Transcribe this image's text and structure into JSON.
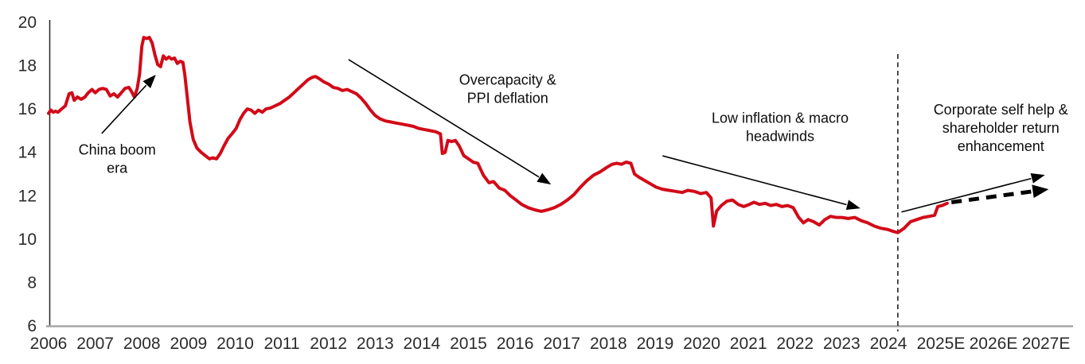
{
  "chart_data": {
    "type": "line",
    "title": "",
    "xlabel": "",
    "ylabel": "",
    "ylim": [
      6,
      20
    ],
    "yticks": [
      6,
      8,
      10,
      12,
      14,
      16,
      18,
      20
    ],
    "x_axis_labels": [
      "2006",
      "2007",
      "2008",
      "2009",
      "2010",
      "2011",
      "2012",
      "2013",
      "2014",
      "2015",
      "2016",
      "2017",
      "2018",
      "2019",
      "2020",
      "2021",
      "2022",
      "2023",
      "2024",
      "2025E",
      "2026E",
      "2027E"
    ],
    "grid": false,
    "legend": false,
    "colors": {
      "line": "#d20a18",
      "forecast": "#111111",
      "axis": "#262626",
      "x_axis_line": "#a6a6a6",
      "annotation_text": "#0d0d0d"
    },
    "series": [
      {
        "name": "historical",
        "style": "solid",
        "points": [
          [
            2006.0,
            15.8
          ],
          [
            2006.05,
            15.95
          ],
          [
            2006.1,
            15.85
          ],
          [
            2006.15,
            15.9
          ],
          [
            2006.2,
            15.85
          ],
          [
            2006.28,
            16.0
          ],
          [
            2006.36,
            16.15
          ],
          [
            2006.44,
            16.7
          ],
          [
            2006.5,
            16.75
          ],
          [
            2006.55,
            16.4
          ],
          [
            2006.62,
            16.55
          ],
          [
            2006.7,
            16.45
          ],
          [
            2006.78,
            16.55
          ],
          [
            2006.85,
            16.75
          ],
          [
            2006.93,
            16.9
          ],
          [
            2007.0,
            16.75
          ],
          [
            2007.08,
            16.9
          ],
          [
            2007.16,
            16.95
          ],
          [
            2007.24,
            16.9
          ],
          [
            2007.32,
            16.6
          ],
          [
            2007.4,
            16.7
          ],
          [
            2007.48,
            16.55
          ],
          [
            2007.56,
            16.75
          ],
          [
            2007.64,
            16.95
          ],
          [
            2007.72,
            17.0
          ],
          [
            2007.78,
            16.8
          ],
          [
            2007.84,
            16.55
          ],
          [
            2007.9,
            16.95
          ],
          [
            2007.95,
            17.6
          ],
          [
            2008.0,
            18.9
          ],
          [
            2008.04,
            19.3
          ],
          [
            2008.1,
            19.25
          ],
          [
            2008.16,
            19.3
          ],
          [
            2008.22,
            19.05
          ],
          [
            2008.28,
            18.5
          ],
          [
            2008.34,
            18.05
          ],
          [
            2008.4,
            17.95
          ],
          [
            2008.46,
            18.45
          ],
          [
            2008.52,
            18.3
          ],
          [
            2008.58,
            18.4
          ],
          [
            2008.64,
            18.3
          ],
          [
            2008.7,
            18.35
          ],
          [
            2008.76,
            18.1
          ],
          [
            2008.82,
            18.2
          ],
          [
            2008.88,
            18.15
          ],
          [
            2008.92,
            17.6
          ],
          [
            2008.97,
            16.6
          ],
          [
            2009.03,
            15.4
          ],
          [
            2009.1,
            14.6
          ],
          [
            2009.18,
            14.2
          ],
          [
            2009.27,
            14.0
          ],
          [
            2009.36,
            13.85
          ],
          [
            2009.45,
            13.7
          ],
          [
            2009.52,
            13.75
          ],
          [
            2009.6,
            13.7
          ],
          [
            2009.68,
            13.95
          ],
          [
            2009.76,
            14.3
          ],
          [
            2009.85,
            14.65
          ],
          [
            2009.93,
            14.85
          ],
          [
            2010.02,
            15.1
          ],
          [
            2010.1,
            15.5
          ],
          [
            2010.18,
            15.8
          ],
          [
            2010.26,
            16.0
          ],
          [
            2010.34,
            15.95
          ],
          [
            2010.42,
            15.8
          ],
          [
            2010.5,
            15.95
          ],
          [
            2010.58,
            15.85
          ],
          [
            2010.66,
            16.0
          ],
          [
            2010.76,
            16.05
          ],
          [
            2010.86,
            16.15
          ],
          [
            2010.96,
            16.25
          ],
          [
            2011.06,
            16.4
          ],
          [
            2011.16,
            16.55
          ],
          [
            2011.26,
            16.75
          ],
          [
            2011.36,
            16.95
          ],
          [
            2011.46,
            17.15
          ],
          [
            2011.56,
            17.35
          ],
          [
            2011.64,
            17.45
          ],
          [
            2011.72,
            17.5
          ],
          [
            2011.8,
            17.4
          ],
          [
            2011.9,
            17.25
          ],
          [
            2012.0,
            17.15
          ],
          [
            2012.1,
            17.0
          ],
          [
            2012.2,
            16.95
          ],
          [
            2012.3,
            16.85
          ],
          [
            2012.4,
            16.9
          ],
          [
            2012.5,
            16.8
          ],
          [
            2012.6,
            16.7
          ],
          [
            2012.7,
            16.5
          ],
          [
            2012.8,
            16.25
          ],
          [
            2012.9,
            15.95
          ],
          [
            2013.0,
            15.7
          ],
          [
            2013.1,
            15.55
          ],
          [
            2013.22,
            15.45
          ],
          [
            2013.34,
            15.4
          ],
          [
            2013.46,
            15.35
          ],
          [
            2013.58,
            15.3
          ],
          [
            2013.7,
            15.25
          ],
          [
            2013.82,
            15.2
          ],
          [
            2013.94,
            15.1
          ],
          [
            2014.06,
            15.05
          ],
          [
            2014.18,
            15.0
          ],
          [
            2014.3,
            14.95
          ],
          [
            2014.4,
            14.85
          ],
          [
            2014.44,
            13.95
          ],
          [
            2014.5,
            14.0
          ],
          [
            2014.56,
            14.55
          ],
          [
            2014.64,
            14.5
          ],
          [
            2014.72,
            14.55
          ],
          [
            2014.8,
            14.3
          ],
          [
            2014.9,
            13.85
          ],
          [
            2015.0,
            13.7
          ],
          [
            2015.1,
            13.55
          ],
          [
            2015.2,
            13.5
          ],
          [
            2015.32,
            12.95
          ],
          [
            2015.44,
            12.6
          ],
          [
            2015.54,
            12.65
          ],
          [
            2015.66,
            12.35
          ],
          [
            2015.78,
            12.25
          ],
          [
            2015.9,
            12.0
          ],
          [
            2016.02,
            11.8
          ],
          [
            2016.14,
            11.6
          ],
          [
            2016.28,
            11.45
          ],
          [
            2016.42,
            11.35
          ],
          [
            2016.56,
            11.28
          ],
          [
            2016.7,
            11.35
          ],
          [
            2016.84,
            11.45
          ],
          [
            2016.98,
            11.6
          ],
          [
            2017.12,
            11.8
          ],
          [
            2017.26,
            12.05
          ],
          [
            2017.4,
            12.4
          ],
          [
            2017.54,
            12.7
          ],
          [
            2017.68,
            12.95
          ],
          [
            2017.82,
            13.1
          ],
          [
            2017.96,
            13.3
          ],
          [
            2018.08,
            13.45
          ],
          [
            2018.18,
            13.5
          ],
          [
            2018.28,
            13.45
          ],
          [
            2018.38,
            13.55
          ],
          [
            2018.48,
            13.5
          ],
          [
            2018.56,
            13.0
          ],
          [
            2018.66,
            12.85
          ],
          [
            2018.78,
            12.7
          ],
          [
            2018.9,
            12.55
          ],
          [
            2019.02,
            12.4
          ],
          [
            2019.16,
            12.3
          ],
          [
            2019.3,
            12.25
          ],
          [
            2019.44,
            12.2
          ],
          [
            2019.58,
            12.15
          ],
          [
            2019.7,
            12.25
          ],
          [
            2019.84,
            12.2
          ],
          [
            2019.98,
            12.1
          ],
          [
            2020.1,
            12.15
          ],
          [
            2020.2,
            11.9
          ],
          [
            2020.25,
            10.6
          ],
          [
            2020.32,
            11.3
          ],
          [
            2020.42,
            11.55
          ],
          [
            2020.54,
            11.75
          ],
          [
            2020.66,
            11.8
          ],
          [
            2020.78,
            11.6
          ],
          [
            2020.9,
            11.5
          ],
          [
            2021.02,
            11.6
          ],
          [
            2021.12,
            11.7
          ],
          [
            2021.24,
            11.6
          ],
          [
            2021.36,
            11.65
          ],
          [
            2021.48,
            11.55
          ],
          [
            2021.6,
            11.6
          ],
          [
            2021.72,
            11.5
          ],
          [
            2021.84,
            11.55
          ],
          [
            2021.96,
            11.45
          ],
          [
            2022.08,
            11.0
          ],
          [
            2022.18,
            10.75
          ],
          [
            2022.28,
            10.9
          ],
          [
            2022.4,
            10.8
          ],
          [
            2022.52,
            10.65
          ],
          [
            2022.64,
            10.9
          ],
          [
            2022.76,
            11.05
          ],
          [
            2022.88,
            11.0
          ],
          [
            2023.0,
            11.0
          ],
          [
            2023.14,
            10.95
          ],
          [
            2023.28,
            11.0
          ],
          [
            2023.42,
            10.85
          ],
          [
            2023.56,
            10.75
          ],
          [
            2023.7,
            10.6
          ],
          [
            2023.84,
            10.5
          ],
          [
            2023.98,
            10.45
          ],
          [
            2024.1,
            10.35
          ],
          [
            2024.18,
            10.3
          ],
          [
            2024.3,
            10.5
          ],
          [
            2024.42,
            10.8
          ],
          [
            2024.54,
            10.9
          ],
          [
            2024.66,
            11.0
          ],
          [
            2024.78,
            11.05
          ],
          [
            2024.88,
            11.1
          ],
          [
            2024.94,
            11.5
          ],
          [
            2025.02,
            11.55
          ],
          [
            2025.12,
            11.65
          ]
        ]
      },
      {
        "name": "forecast",
        "style": "dashed-arrow",
        "points": [
          [
            2025.2,
            11.7
          ],
          [
            2027.05,
            12.3
          ]
        ]
      }
    ],
    "divider": {
      "year": 2024.18
    },
    "annotations": [
      {
        "id": "china-boom-era",
        "lines": [
          "China boom",
          "era"
        ],
        "text_pos": {
          "year": 2007.47,
          "value": 13.7
        },
        "arrow": {
          "from": {
            "year": 2007.14,
            "value": 14.87
          },
          "to": {
            "year": 2008.3,
            "value": 17.58
          },
          "weight": "thin"
        }
      },
      {
        "id": "overcapacity-ppi-deflation",
        "lines": [
          "Overcapacity &",
          "PPI deflation"
        ],
        "text_pos": {
          "year": 2015.84,
          "value": 16.92
        },
        "arrow": {
          "from": {
            "year": 2012.43,
            "value": 18.28
          },
          "to": {
            "year": 2016.77,
            "value": 12.52
          },
          "weight": "thin"
        }
      },
      {
        "id": "low-inflation-macro-headwinds",
        "lines": [
          "Low inflation & macro",
          "headwinds"
        ],
        "text_pos": {
          "year": 2021.68,
          "value": 15.16
        },
        "arrow": {
          "from": {
            "year": 2019.16,
            "value": 13.84
          },
          "to": {
            "year": 2023.4,
            "value": 11.42
          },
          "weight": "thin"
        }
      },
      {
        "id": "corporate-self-help",
        "lines": [
          "Corporate self help &",
          "shareholder return",
          "enhancement"
        ],
        "text_pos": {
          "year": 2026.14,
          "value": 15.13
        },
        "arrow": {
          "from": {
            "year": 2024.25,
            "value": 11.25
          },
          "to": {
            "year": 2026.98,
            "value": 12.96
          },
          "weight": "thin"
        }
      }
    ]
  }
}
